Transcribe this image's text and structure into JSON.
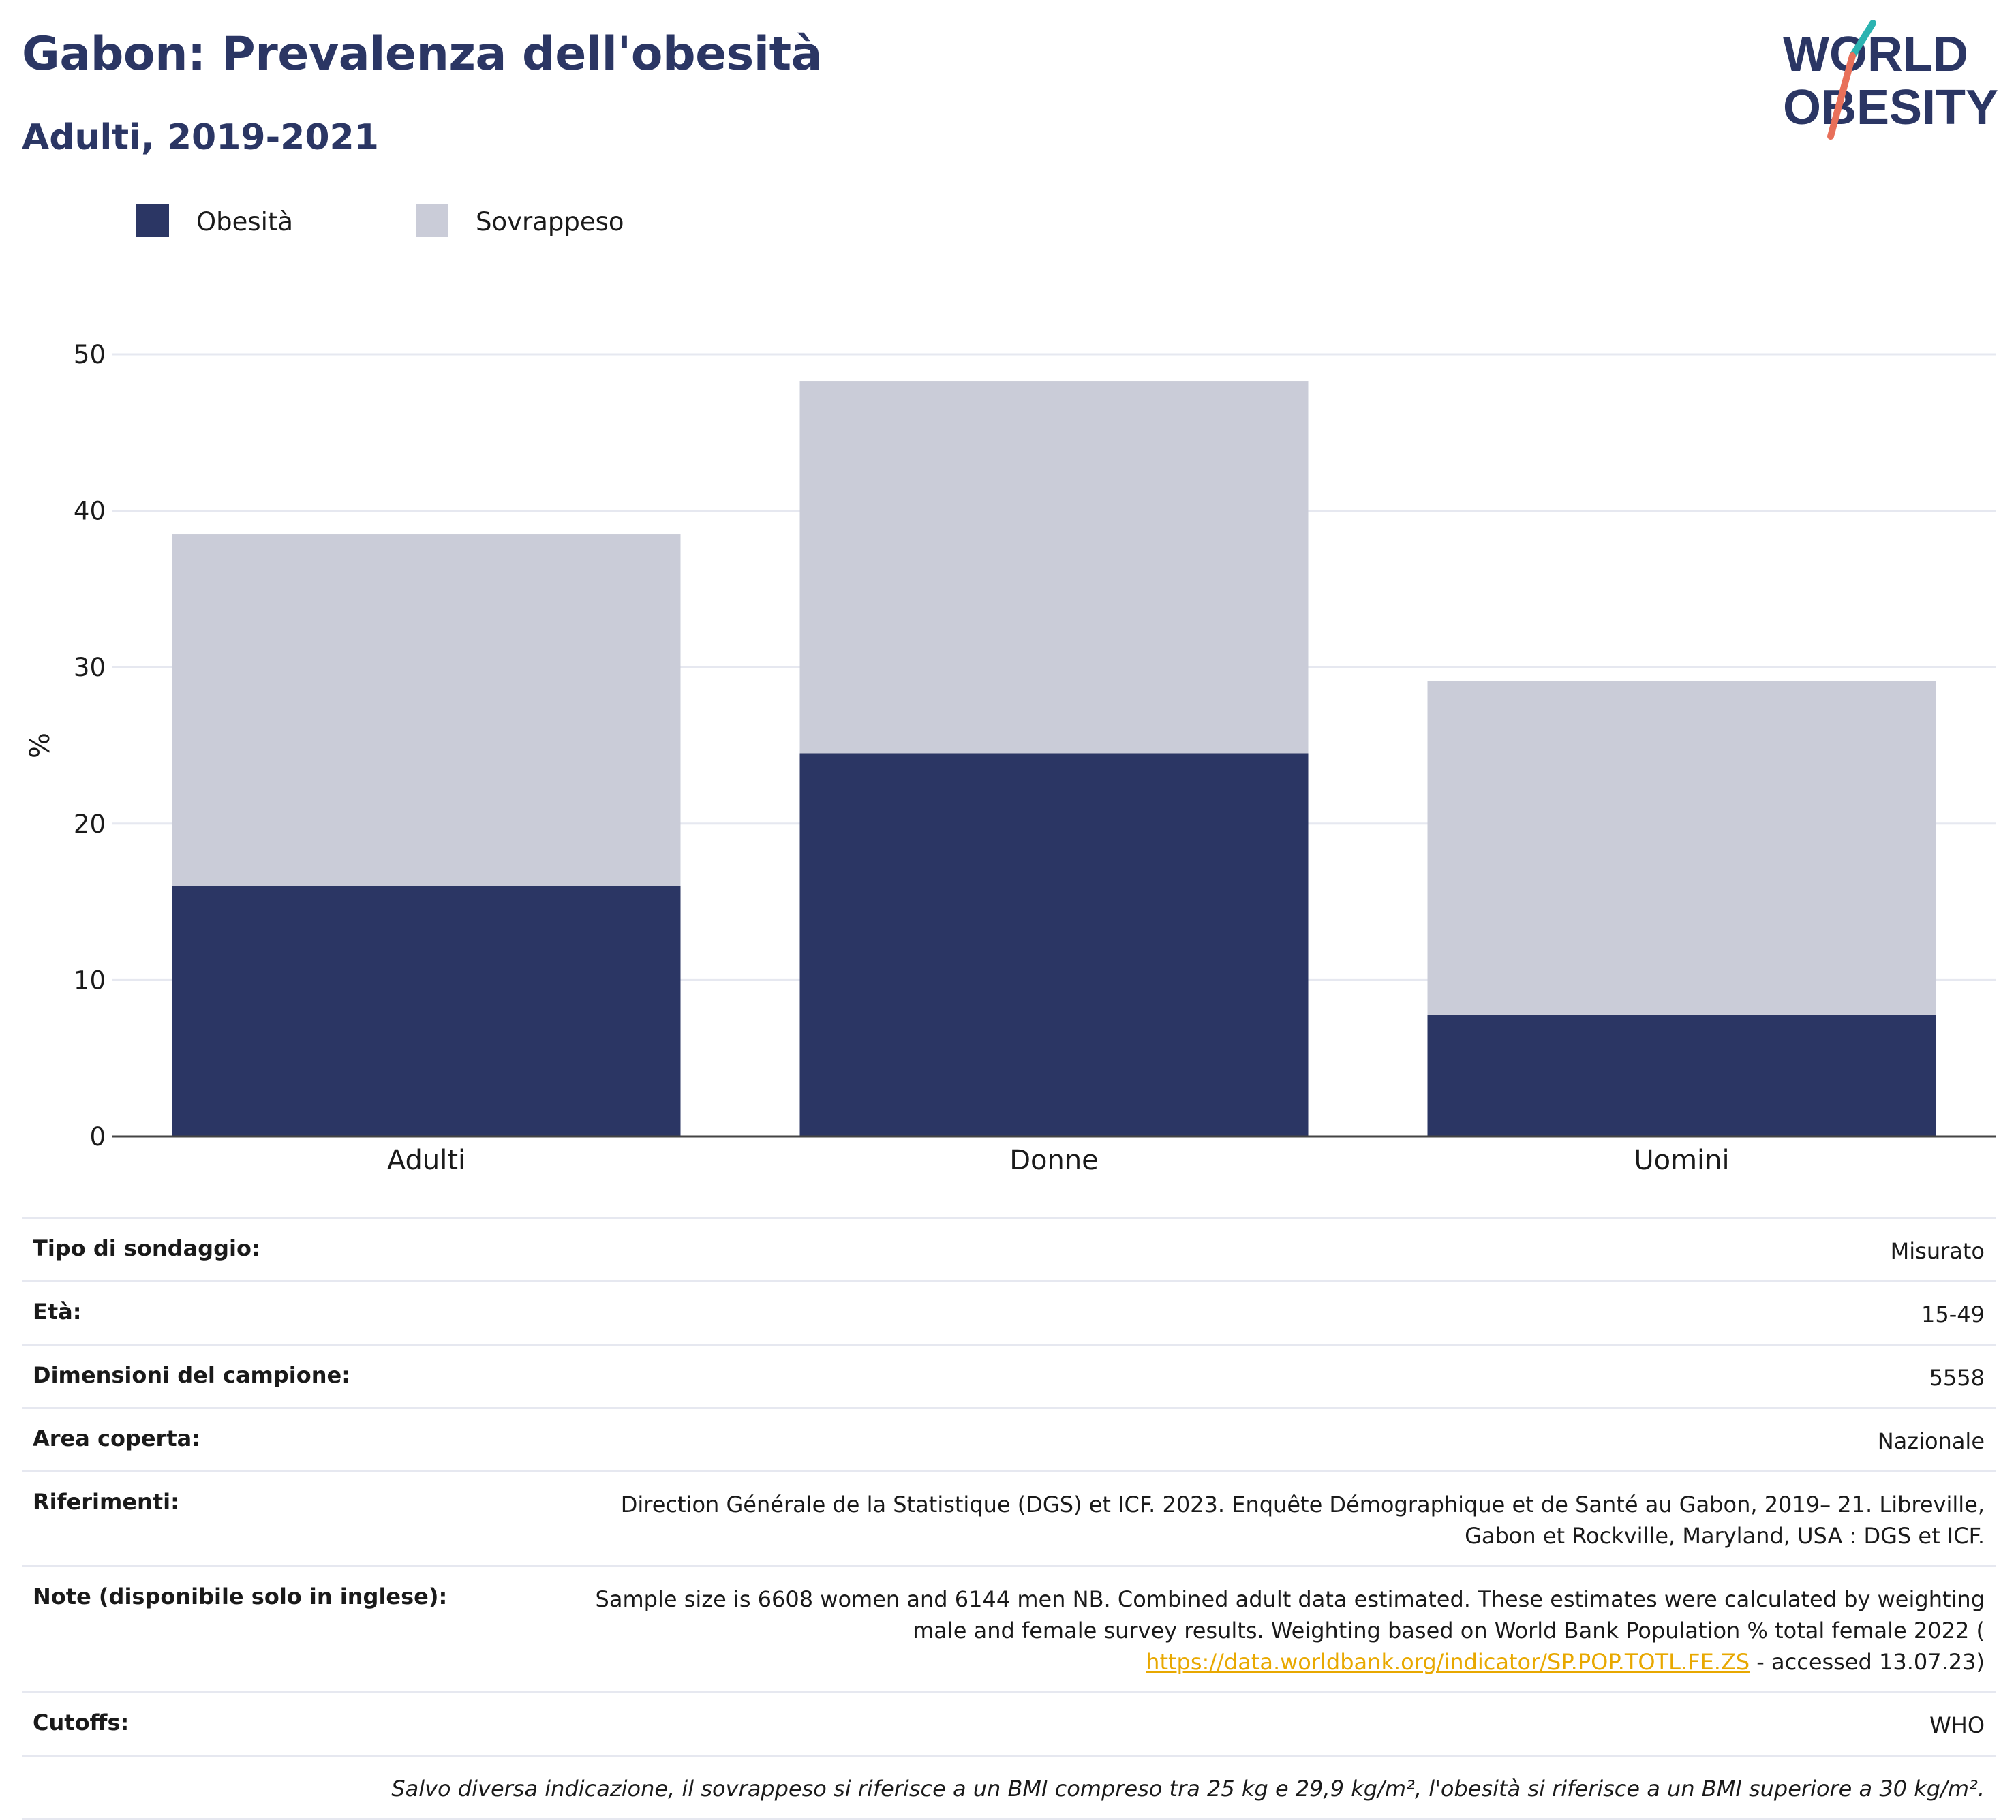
{
  "header": {
    "title": "Gabon: Prevalenza dell'obesità",
    "subtitle": "Adulti, 2019-2021"
  },
  "logo": {
    "line1": "WORLD",
    "line2": "OBESITY",
    "icon": "world-obesity-logo"
  },
  "colors": {
    "obesity": "#2b3664",
    "overweight": "#caccd8",
    "title": "#2b3664",
    "link": "#e8a800",
    "logo_teal": "#2bb3b1",
    "logo_coral": "#e8705a",
    "grid": "#e6e8f0"
  },
  "legend": [
    {
      "label": "Obesità",
      "color": "#2b3664"
    },
    {
      "label": "Sovrappeso",
      "color": "#caccd8"
    }
  ],
  "chart_data": {
    "type": "bar",
    "stacked": true,
    "categories": [
      "Adulti",
      "Donne",
      "Uomini"
    ],
    "series": [
      {
        "name": "Obesità",
        "values": [
          16.0,
          24.5,
          7.8
        ]
      },
      {
        "name": "Sovrappeso",
        "values": [
          22.5,
          23.8,
          21.3
        ]
      }
    ],
    "ylabel": "%",
    "ylim": [
      0,
      50
    ],
    "yticks": [
      0,
      10,
      20,
      30,
      40,
      50
    ],
    "grid": true,
    "legend_position": "top-left"
  },
  "info": {
    "rows": [
      {
        "key": "Tipo di sondaggio:",
        "value": "Misurato"
      },
      {
        "key": "Età:",
        "value": "15-49"
      },
      {
        "key": "Dimensioni del campione:",
        "value": "5558"
      },
      {
        "key": "Area coperta:",
        "value": "Nazionale"
      },
      {
        "key": "Riferimenti:",
        "value": "Direction Générale de la Statistique (DGS) et ICF. 2023. Enquête Démographique et de Santé au Gabon, 2019– 21. Libreville, Gabon et Rockville, Maryland, USA : DGS et ICF."
      }
    ],
    "notes_key": "Note (disponibile solo in inglese):",
    "notes_text": "Sample size is 6608 women and 6144 men NB. Combined adult data estimated. These estimates were calculated by weighting male and female survey results. Weighting based on World Bank Population % total female 2022 (",
    "notes_link": "https://data.worldbank.org/indicator/SP.POP.TOTL.FE.ZS",
    "notes_suffix": " - accessed 13.07.23)",
    "cutoffs_key": "Cutoffs:",
    "cutoffs_value": "WHO",
    "footnote": "Salvo diversa indicazione, il sovrappeso si riferisce a un BMI compreso tra 25 kg e 29,9 kg/m², l'obesità si riferisce a un BMI superiore a 30 kg/m²."
  }
}
